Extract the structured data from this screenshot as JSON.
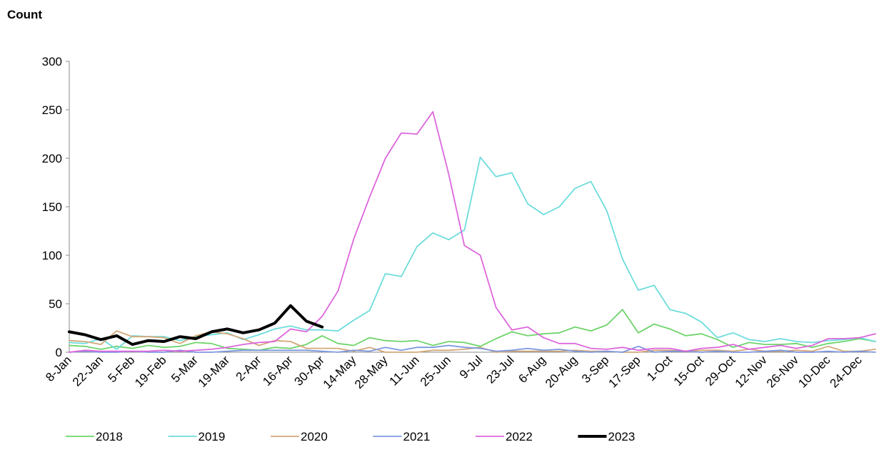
{
  "chart_data": {
    "type": "line",
    "title": "",
    "ylabel": "Count",
    "xlabel": "",
    "ylim": [
      0,
      300
    ],
    "yticks": [
      0,
      50,
      100,
      150,
      200,
      250,
      300
    ],
    "grid": false,
    "legend_position": "bottom-left",
    "x_tick_labels": [
      "8-Jan",
      "22-Jan",
      "5-Feb",
      "19-Feb",
      "5-Mar",
      "19-Mar",
      "2-Apr",
      "16-Apr",
      "30-Apr",
      "14-May",
      "28-May",
      "11-Jun",
      "25-Jun",
      "9-Jul",
      "23-Jul",
      "6-Aug",
      "20-Aug",
      "3-Sep",
      "17-Sep",
      "1-Oct",
      "15-Oct",
      "29-Oct",
      "12-Nov",
      "26-Nov",
      "10-Dec",
      "24-Dec"
    ],
    "n_points": 52,
    "series": [
      {
        "name": "2018",
        "color": "#6ed46a",
        "width": 1.8,
        "values": [
          7,
          6,
          3,
          6,
          4,
          7,
          5,
          6,
          10,
          9,
          4,
          3,
          2,
          5,
          4,
          8,
          17,
          9,
          7,
          15,
          12,
          11,
          12,
          7,
          11,
          10,
          6,
          14,
          21,
          17,
          19,
          20,
          26,
          22,
          28,
          44,
          20,
          29,
          24,
          17,
          19,
          13,
          5,
          10,
          8,
          8,
          9,
          5,
          9,
          11,
          14,
          11
        ]
      },
      {
        "name": "2019",
        "color": "#6ddcdc",
        "width": 1.8,
        "values": [
          10,
          9,
          14,
          3,
          17,
          16,
          16,
          12,
          16,
          18,
          20,
          13,
          18,
          24,
          27,
          23,
          23,
          22,
          33,
          43,
          81,
          78,
          109,
          123,
          116,
          126,
          201,
          181,
          185,
          153,
          142,
          150,
          169,
          176,
          146,
          96,
          64,
          69,
          44,
          40,
          31,
          15,
          20,
          13,
          11,
          14,
          11,
          10,
          12,
          13,
          15,
          11
        ]
      },
      {
        "name": "2020",
        "color": "#d4a878",
        "width": 1.8,
        "values": [
          12,
          11,
          8,
          22,
          16,
          16,
          15,
          9,
          17,
          21,
          19,
          14,
          7,
          12,
          11,
          4,
          4,
          4,
          1,
          5,
          0,
          0,
          0,
          2,
          2,
          3,
          5,
          0,
          1,
          1,
          1,
          1,
          2,
          1,
          1,
          0,
          0,
          2,
          2,
          1,
          2,
          2,
          1,
          3,
          1,
          1,
          2,
          1,
          6,
          1,
          1,
          3
        ]
      },
      {
        "name": "2021",
        "color": "#7d98e0",
        "width": 1.8,
        "values": [
          0,
          1,
          0,
          0,
          1,
          0,
          0,
          2,
          0,
          0,
          1,
          2,
          2,
          2,
          2,
          2,
          1,
          0,
          2,
          1,
          5,
          2,
          5,
          5,
          7,
          5,
          4,
          1,
          2,
          4,
          2,
          3,
          1,
          0,
          1,
          0,
          6,
          0,
          1,
          1,
          0,
          1,
          0,
          0,
          1,
          2,
          0,
          0,
          1,
          0,
          1,
          0
        ]
      },
      {
        "name": "2022",
        "color": "#dd66dd",
        "width": 1.8,
        "values": [
          0,
          2,
          1,
          1,
          1,
          1,
          2,
          1,
          2,
          3,
          5,
          8,
          10,
          11,
          24,
          21,
          37,
          63,
          117,
          160,
          200,
          226,
          225,
          248,
          184,
          110,
          100,
          46,
          23,
          26,
          15,
          9,
          9,
          4,
          3,
          5,
          2,
          4,
          4,
          1,
          4,
          5,
          8,
          3,
          5,
          7,
          4,
          7,
          14,
          14,
          15,
          19
        ]
      },
      {
        "name": "2023",
        "color": "#000000",
        "width": 4,
        "values": [
          21,
          18,
          13,
          17,
          8,
          12,
          11,
          16,
          14,
          21,
          24,
          20,
          23,
          30,
          48,
          32,
          26
        ]
      }
    ]
  }
}
